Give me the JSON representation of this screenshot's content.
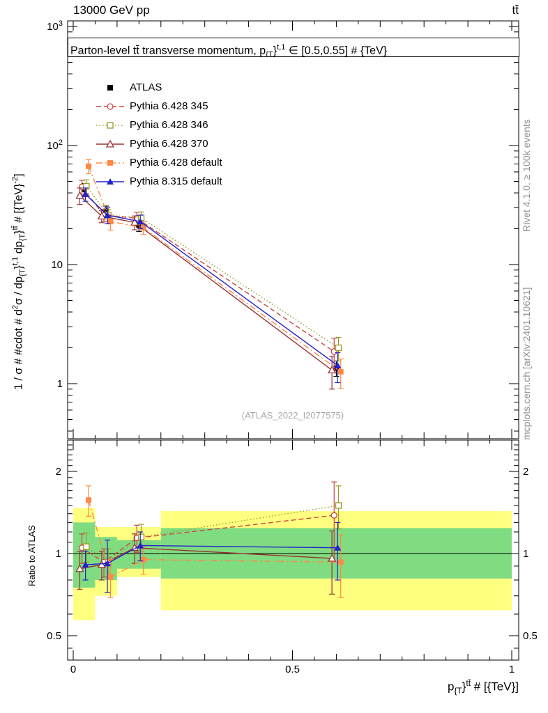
{
  "header": {
    "left": "13000 GeV pp",
    "right": "tt̄"
  },
  "titles": {
    "plot_title": [
      {
        "t": "Parton-level tt̄ transverse momentum, p"
      },
      {
        "t": "{T",
        "s": "sub"
      },
      {
        "t": "}"
      },
      {
        "t": "t,1",
        "s": "sup"
      },
      {
        "t": " ∈ [0.5,0.55] # {TeV}"
      }
    ],
    "y_axis_main": [
      {
        "t": "1 / σ # #cdot # d"
      },
      {
        "t": "2",
        "s": "sup"
      },
      {
        "t": "σ / dp"
      },
      {
        "t": "{T",
        "s": "sub"
      },
      {
        "t": "}"
      },
      {
        "t": "t,1",
        "s": "sup"
      },
      {
        "t": " dp"
      },
      {
        "t": "{T",
        "s": "sub"
      },
      {
        "t": "}"
      },
      {
        "t": "tt̄",
        "s": "sup"
      },
      {
        "t": " # [{TeV}"
      },
      {
        "t": "-2",
        "s": "sup"
      },
      {
        "t": "]"
      }
    ],
    "y_axis_ratio": "Ratio to ATLAS",
    "x_axis": [
      {
        "t": "p"
      },
      {
        "t": "{T",
        "s": "sub"
      },
      {
        "t": "}"
      },
      {
        "t": "tt̄",
        "s": "sup"
      },
      {
        "t": " # [{TeV}]"
      }
    ],
    "watermark": "(ATLAS_2022_I2077575)"
  },
  "side_notes": {
    "top_right": "Rivet 4.1.0, ≥ 100k events",
    "bottom_right": "mcplots.cern.ch [arXiv:2401.10621]"
  },
  "chart_data": {
    "type": "scatter-line",
    "x": {
      "bin_edges": [
        0,
        0.05,
        0.1,
        0.2,
        1.0
      ],
      "centers": [
        0.025,
        0.075,
        0.15,
        0.6
      ],
      "lim": [
        -0.013,
        1.016
      ],
      "ticks": [
        {
          "v": 0,
          "label": "0"
        },
        {
          "v": 0.5,
          "label": "0.5"
        },
        {
          "v": 1,
          "label": "1"
        }
      ]
    },
    "main_axis": {
      "scale": "log",
      "lim": [
        0.35,
        1100
      ],
      "ticks": [
        {
          "v": 1,
          "label": "1"
        },
        {
          "v": 10,
          "label": "10"
        },
        {
          "v": 100,
          "label": "10^2"
        },
        {
          "v": 1000,
          "label": "10^3"
        }
      ]
    },
    "ratio_axis": {
      "scale": "log",
      "lim": [
        0.41,
        2.6
      ],
      "ticks": [
        {
          "v": 0.5,
          "label": "0.5"
        },
        {
          "v": 1,
          "label": "1"
        },
        {
          "v": 2,
          "label": "2"
        }
      ]
    },
    "reference_line": 1,
    "series": [
      {
        "name": "ATLAS",
        "color": "#000000",
        "marker": "square-filled",
        "line": "none",
        "main_values": [
          43,
          28,
          21.5,
          1.35
        ],
        "main_errors": [
          5,
          3,
          2.5,
          0.2
        ],
        "ratio_values": null,
        "ratio_errors": null
      },
      {
        "name": "Pythia 6.428 345",
        "color": "#cc4444",
        "marker": "circle-open",
        "line": "dashed",
        "main_values": [
          45,
          26,
          24.5,
          1.86
        ],
        "main_errors": [
          6,
          3,
          3,
          0.55
        ],
        "ratio_values": [
          1.05,
          0.93,
          1.14,
          1.38
        ],
        "ratio_errors": [
          0.13,
          0.11,
          0.13,
          0.45
        ]
      },
      {
        "name": "Pythia 6.428 346",
        "color": "#999922",
        "marker": "square-open",
        "line": "dotted",
        "main_values": [
          45.5,
          26,
          24.7,
          2.0
        ],
        "main_errors": [
          6,
          3,
          3,
          0.45
        ],
        "ratio_values": [
          1.06,
          0.93,
          1.15,
          1.5
        ],
        "ratio_errors": [
          0.13,
          0.11,
          0.13,
          0.27
        ]
      },
      {
        "name": "Pythia 6.428 370",
        "color": "#993333",
        "marker": "triangle-open",
        "line": "solid",
        "main_values": [
          38,
          25.5,
          22.6,
          1.3
        ],
        "main_errors": [
          6,
          3,
          3,
          0.4
        ],
        "ratio_values": [
          0.88,
          0.91,
          1.05,
          0.96
        ],
        "ratio_errors": [
          0.14,
          0.11,
          0.13,
          0.25
        ]
      },
      {
        "name": "Pythia 6.428 default",
        "color": "#ff8844",
        "marker": "square-filled",
        "line": "dashdot",
        "main_values": [
          67,
          23,
          20.4,
          1.26
        ],
        "main_errors": [
          9,
          3.5,
          2.5,
          0.35
        ],
        "ratio_values": [
          1.57,
          0.82,
          0.95,
          0.93
        ],
        "ratio_errors": [
          0.2,
          0.13,
          0.11,
          0.24
        ]
      },
      {
        "name": "Pythia 8.315 default",
        "color": "#2222cc",
        "marker": "triangle-filled",
        "line": "solid",
        "main_values": [
          39,
          26,
          23,
          1.42
        ],
        "main_errors": [
          5,
          4,
          3,
          0.4
        ],
        "ratio_values": [
          0.91,
          0.92,
          1.07,
          1.05
        ],
        "ratio_errors": [
          0.11,
          0.2,
          0.13,
          0.25
        ]
      }
    ],
    "ratio_bands": {
      "yellow_color": "#ffff80",
      "green_color": "#80dc80",
      "bins": [
        {
          "x": [
            0,
            0.05
          ],
          "yellow": [
            0.57,
            1.47
          ],
          "green": [
            0.75,
            1.3
          ]
        },
        {
          "x": [
            0.05,
            0.1
          ],
          "yellow": [
            0.7,
            1.25
          ],
          "green": [
            0.8,
            1.15
          ]
        },
        {
          "x": [
            0.1,
            0.2
          ],
          "yellow": [
            0.82,
            1.25
          ],
          "green": [
            0.88,
            1.12
          ]
        },
        {
          "x": [
            0.2,
            1.0
          ],
          "yellow": [
            0.62,
            1.43
          ],
          "green": [
            0.81,
            1.24
          ]
        }
      ]
    }
  }
}
